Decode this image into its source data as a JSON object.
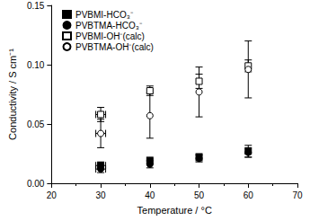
{
  "chart_data": {
    "type": "scatter",
    "x_label": "Temperature / °C",
    "y_label": "Conductivity / S cm⁻¹",
    "x": [
      30,
      40,
      50,
      60
    ],
    "series": [
      {
        "name": "PVBMI-HCO₃⁻",
        "color": "#000000",
        "marker": "square",
        "values": [
          0.015,
          0.019,
          0.022,
          0.027
        ],
        "yerr": [
          0.003,
          0.003,
          0.003,
          0.005
        ],
        "xerr": [
          1,
          0,
          0,
          0
        ]
      },
      {
        "name": "PVBTMA-HCO₃⁻",
        "color": "#000000",
        "marker": "circle",
        "values": [
          0.012,
          0.016,
          0.021,
          0.026
        ],
        "yerr": [
          0.003,
          0.003,
          0.003,
          0.004
        ],
        "xerr": [
          1,
          0,
          0,
          0
        ]
      },
      {
        "name": "PVBMI-OH⁻(calc)",
        "color": "#000000",
        "marker": "open-square",
        "values": [
          0.058,
          0.078,
          0.086,
          0.099
        ],
        "yerr": [
          0.006,
          0.004,
          0.006,
          0.005
        ],
        "xerr": [
          1,
          0,
          0,
          0
        ]
      },
      {
        "name": "PVBTMA-OH⁻(calc)",
        "color": "#000000",
        "marker": "open-circle",
        "values": [
          0.042,
          0.057,
          0.077,
          0.096
        ],
        "yerr": [
          0.012,
          0.019,
          0.021,
          0.024
        ],
        "xerr": [
          1,
          0,
          0,
          0
        ]
      }
    ],
    "xlim": [
      20,
      70
    ],
    "xticks": [
      20,
      30,
      40,
      50,
      60,
      70
    ],
    "ylim": [
      0,
      0.15
    ],
    "yticks": [
      {
        "value": 0,
        "label": "0.00"
      },
      0.05,
      {
        "value": 0.1,
        "label": "0.10"
      },
      0.15
    ],
    "grid": false,
    "legend": "upper left"
  }
}
